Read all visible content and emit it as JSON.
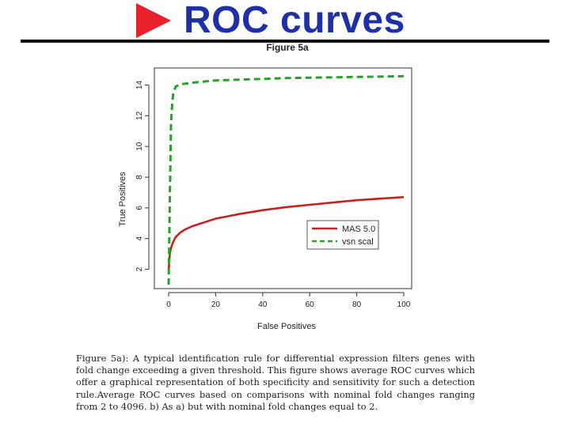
{
  "slide": {
    "title": "ROC curves",
    "arrow_icon": "triangle-right-icon",
    "title_color": "#1f2fa8",
    "arrow_color": "#e8202a"
  },
  "chart_data": {
    "type": "line",
    "title": "Figure 5a",
    "xlabel": "False Positives",
    "ylabel": "True Positives",
    "xlim": [
      0,
      100
    ],
    "ylim": [
      1,
      14.8
    ],
    "xticks": [
      0,
      20,
      40,
      60,
      80,
      100
    ],
    "yticks": [
      2,
      4,
      6,
      8,
      10,
      12,
      14
    ],
    "grid": false,
    "legend_position": "right",
    "series": [
      {
        "name": "MAS 5.0",
        "color": "#cc1f1f",
        "style": "solid",
        "x": [
          0,
          0.5,
          1,
          2,
          3,
          5,
          7,
          10,
          15,
          20,
          25,
          30,
          40,
          50,
          60,
          70,
          80,
          90,
          100
        ],
        "y": [
          1.9,
          3.0,
          3.4,
          3.8,
          4.1,
          4.4,
          4.6,
          4.8,
          5.05,
          5.3,
          5.45,
          5.6,
          5.85,
          6.05,
          6.2,
          6.35,
          6.5,
          6.6,
          6.7
        ]
      },
      {
        "name": "vsn scal",
        "color": "#2aa02a",
        "style": "dashed",
        "x": [
          0,
          0.2,
          0.5,
          0.8,
          1,
          1.5,
          2,
          3,
          5,
          10,
          20,
          30,
          40,
          50,
          60,
          70,
          80,
          90,
          100
        ],
        "y": [
          1.0,
          3.0,
          6.5,
          9.5,
          11.5,
          12.8,
          13.5,
          13.9,
          14.05,
          14.15,
          14.3,
          14.35,
          14.4,
          14.45,
          14.48,
          14.5,
          14.53,
          14.55,
          14.58
        ]
      }
    ]
  },
  "caption": {
    "text": "Figure 5a): A typical identification rule for differential expression filters genes with fold change exceeding a given threshold. This figure shows average ROC curves which offer a graphical representation of both specificity and sensitivity for such a detection rule.Average ROC curves based on comparisons with nominal fold changes ranging from 2 to 4096. b) As a) but with nominal fold changes equal to 2."
  }
}
